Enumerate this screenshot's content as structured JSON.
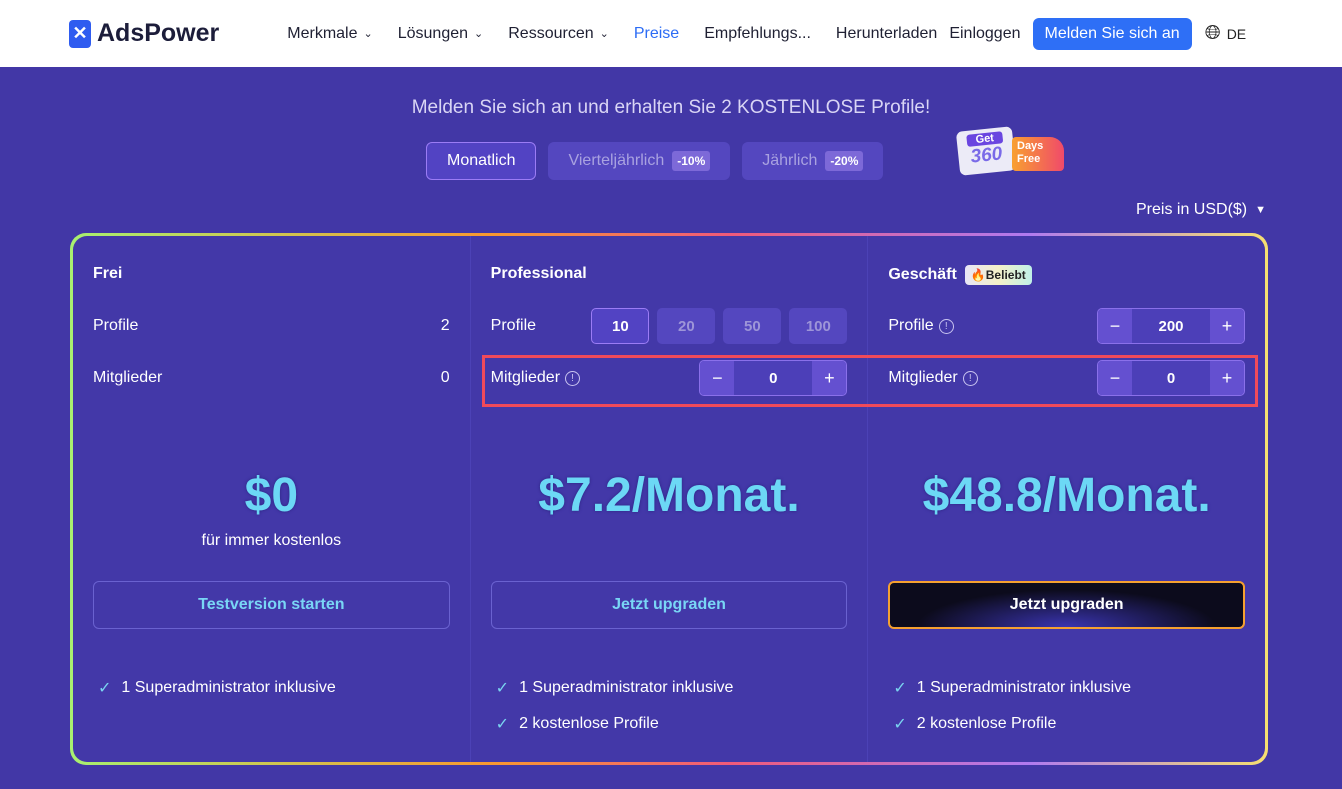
{
  "nav": {
    "brand": "AdsPower",
    "items": [
      {
        "label": "Merkmale",
        "dropdown": true
      },
      {
        "label": "Lösungen",
        "dropdown": true
      },
      {
        "label": "Ressourcen",
        "dropdown": true
      },
      {
        "label": "Preise",
        "active": true
      },
      {
        "label": "Empfehlungs..."
      },
      {
        "label": "Herunterladen"
      }
    ],
    "login": "Einloggen",
    "signup": "Melden Sie sich an",
    "lang": "DE",
    "accent": "#2e6ff6"
  },
  "headline": "Melden Sie sich an und erhalten Sie 2 KOSTENLOSE Profile!",
  "billing_tabs": [
    {
      "label": "Monatlich",
      "active": true
    },
    {
      "label": "Vierteljährlich",
      "discount": "-10%"
    },
    {
      "label": "Jährlich",
      "discount": "-20%"
    }
  ],
  "promo": {
    "line1": "Get",
    "line2": "360",
    "line3": "Days",
    "line4": "Free"
  },
  "currency": "Preis in USD($)",
  "plans": [
    {
      "name": "Frei",
      "profiles_label": "Profile",
      "profiles": "2",
      "members_label": "Mitglieder",
      "members": "0",
      "price": "$0",
      "subtitle": "für immer kostenlos",
      "cta": "Testversion starten",
      "features": [
        "1 Superadministrator inklusive"
      ]
    },
    {
      "name": "Professional",
      "profiles_label": "Profile",
      "profile_options": [
        "10",
        "20",
        "50",
        "100"
      ],
      "selected": "10",
      "members_label": "Mitglieder",
      "members": "0",
      "price": "$7.2/Monat.",
      "cta": "Jetzt upgraden",
      "features": [
        "1 Superadministrator inklusive",
        "2 kostenlose Profile"
      ]
    },
    {
      "name": "Geschäft",
      "badge": "Beliebt",
      "profiles_label": "Profile",
      "profiles": "200",
      "members_label": "Mitglieder",
      "members": "0",
      "price": "$48.8/Monat.",
      "cta": "Jetzt upgraden",
      "features": [
        "1 Superadministrator inklusive",
        "2 kostenlose Profile"
      ]
    }
  ]
}
